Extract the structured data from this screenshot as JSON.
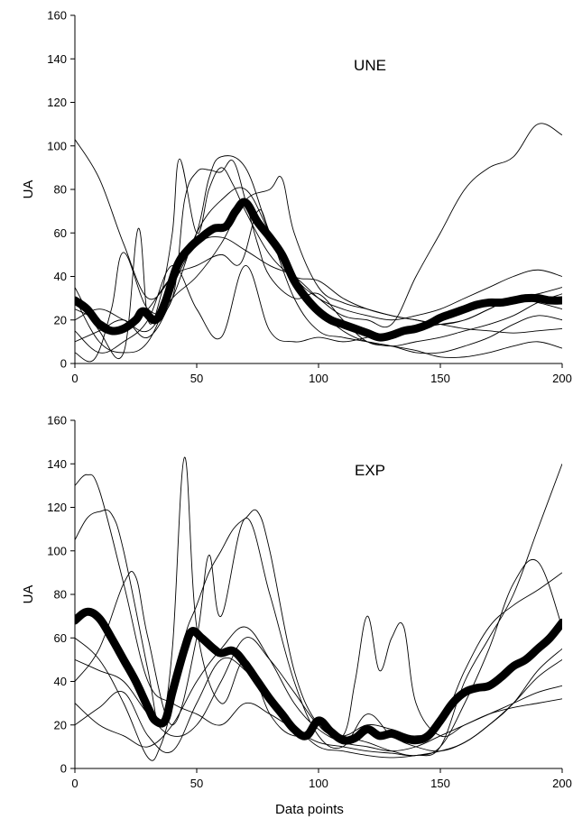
{
  "chart_data": [
    {
      "type": "line",
      "panel_label": "UNE",
      "xlabel": "",
      "ylabel": "UA",
      "xlim": [
        0,
        200
      ],
      "ylim": [
        0,
        160
      ],
      "xticks": [
        "0",
        "50",
        "100",
        "150",
        "200"
      ],
      "yticks": [
        "0",
        "20",
        "40",
        "60",
        "80",
        "100",
        "120",
        "140",
        "160"
      ],
      "grid": false,
      "series": [
        {
          "role": "individual",
          "x": [
            0,
            10,
            20,
            30,
            40,
            50,
            60,
            70,
            80,
            90,
            100,
            110,
            120,
            130,
            140,
            150,
            160,
            170,
            180,
            190,
            200
          ],
          "values": [
            103,
            85,
            55,
            30,
            40,
            55,
            58,
            52,
            45,
            40,
            30,
            22,
            20,
            18,
            40,
            60,
            80,
            90,
            95,
            110,
            105
          ]
        },
        {
          "role": "individual",
          "x": [
            0,
            8,
            15,
            20,
            30,
            40,
            45,
            50,
            55,
            60,
            65,
            70,
            75,
            80,
            90,
            100,
            110,
            120,
            130,
            140,
            150,
            160,
            170,
            180,
            190,
            200
          ],
          "values": [
            5,
            2,
            25,
            51,
            25,
            30,
            75,
            88,
            89,
            88,
            93,
            75,
            55,
            40,
            30,
            32,
            20,
            10,
            8,
            6,
            3,
            3,
            5,
            8,
            10,
            7
          ]
        },
        {
          "role": "individual",
          "x": [
            0,
            10,
            20,
            26,
            30,
            35,
            40,
            43,
            50,
            55,
            60,
            65,
            70,
            80,
            90,
            100,
            110,
            120,
            130,
            140,
            150,
            160,
            170,
            180,
            190,
            200
          ],
          "values": [
            35,
            15,
            5,
            62,
            20,
            30,
            60,
            94,
            60,
            80,
            90,
            82,
            70,
            50,
            40,
            38,
            30,
            25,
            22,
            20,
            18,
            16,
            15,
            14,
            15,
            16
          ]
        },
        {
          "role": "individual",
          "x": [
            0,
            10,
            20,
            30,
            40,
            50,
            55,
            60,
            70,
            80,
            90,
            100,
            110,
            120,
            130,
            140,
            150,
            160,
            170,
            180,
            190,
            200
          ],
          "values": [
            30,
            10,
            5,
            10,
            35,
            60,
            85,
            95,
            90,
            60,
            40,
            30,
            25,
            22,
            20,
            22,
            25,
            30,
            35,
            40,
            43,
            40
          ]
        },
        {
          "role": "individual",
          "x": [
            0,
            10,
            20,
            30,
            40,
            50,
            60,
            70,
            80,
            85,
            90,
            100,
            110,
            120,
            130,
            140,
            150,
            160,
            170,
            180,
            190,
            200
          ],
          "values": [
            20,
            25,
            20,
            15,
            30,
            40,
            55,
            75,
            80,
            85,
            60,
            35,
            28,
            25,
            22,
            20,
            18,
            20,
            25,
            30,
            32,
            35
          ]
        },
        {
          "role": "individual",
          "x": [
            0,
            10,
            20,
            30,
            40,
            50,
            60,
            70,
            80,
            90,
            100,
            110,
            120,
            130,
            140,
            150,
            160,
            170,
            180,
            190,
            200
          ],
          "values": [
            15,
            5,
            10,
            20,
            45,
            25,
            12,
            45,
            15,
            10,
            12,
            10,
            12,
            14,
            16,
            18,
            20,
            25,
            30,
            28,
            25
          ]
        },
        {
          "role": "individual",
          "x": [
            0,
            10,
            20,
            30,
            40,
            50,
            60,
            68,
            75,
            80,
            90,
            100,
            110,
            120,
            130,
            140,
            150,
            160,
            170,
            180,
            190,
            200
          ],
          "values": [
            25,
            20,
            15,
            25,
            40,
            45,
            50,
            46,
            70,
            60,
            30,
            15,
            12,
            10,
            8,
            5,
            5,
            8,
            12,
            18,
            22,
            20
          ]
        },
        {
          "role": "individual",
          "x": [
            0,
            10,
            20,
            30,
            40,
            50,
            60,
            70,
            80,
            90,
            100,
            110,
            120,
            130,
            140,
            150,
            160,
            170,
            180,
            190,
            200
          ],
          "values": [
            10,
            15,
            20,
            12,
            30,
            60,
            75,
            80,
            60,
            40,
            25,
            15,
            10,
            8,
            10,
            12,
            15,
            18,
            22,
            28,
            32
          ]
        },
        {
          "role": "mean",
          "x": [
            0,
            5,
            10,
            15,
            20,
            25,
            28,
            33,
            37,
            42,
            47,
            52,
            57,
            62,
            66,
            70,
            75,
            80,
            85,
            90,
            95,
            100,
            105,
            110,
            115,
            120,
            125,
            130,
            135,
            140,
            145,
            150,
            155,
            160,
            165,
            170,
            175,
            180,
            185,
            190,
            195,
            200
          ],
          "values": [
            29,
            25,
            18,
            15,
            16,
            20,
            24,
            20,
            28,
            45,
            53,
            58,
            62,
            63,
            70,
            74,
            65,
            58,
            50,
            38,
            30,
            24,
            20,
            18,
            16,
            14,
            12,
            13,
            15,
            16,
            18,
            21,
            23,
            25,
            27,
            28,
            28,
            29,
            30,
            30,
            29,
            29
          ]
        }
      ]
    },
    {
      "type": "line",
      "panel_label": "EXP",
      "xlabel": "Data points",
      "ylabel": "UA",
      "xlim": [
        0,
        200
      ],
      "ylim": [
        0,
        160
      ],
      "xticks": [
        "0",
        "50",
        "100",
        "150",
        "200"
      ],
      "yticks": [
        "0",
        "20",
        "40",
        "60",
        "80",
        "100",
        "120",
        "140",
        "160"
      ],
      "grid": false,
      "series": [
        {
          "role": "individual",
          "x": [
            0,
            5,
            10,
            20,
            30,
            40,
            50,
            60,
            70,
            80,
            90,
            100,
            110,
            120,
            130,
            140,
            150,
            160,
            170,
            180,
            190,
            200
          ],
          "values": [
            130,
            135,
            128,
            85,
            40,
            30,
            25,
            20,
            30,
            25,
            18,
            12,
            10,
            8,
            7,
            6,
            10,
            40,
            60,
            80,
            110,
            140
          ]
        },
        {
          "role": "individual",
          "x": [
            0,
            5,
            10,
            15,
            20,
            30,
            35,
            40,
            45,
            50,
            60,
            70,
            80,
            90,
            100,
            110,
            120,
            130,
            140,
            150,
            160,
            170,
            180,
            190,
            200
          ],
          "values": [
            105,
            115,
            118,
            117,
            100,
            45,
            20,
            55,
            143,
            65,
            30,
            50,
            25,
            15,
            20,
            15,
            12,
            8,
            6,
            10,
            30,
            55,
            85,
            95,
            65
          ]
        },
        {
          "role": "individual",
          "x": [
            0,
            10,
            20,
            30,
            35,
            40,
            45,
            50,
            55,
            60,
            65,
            70,
            75,
            80,
            90,
            100,
            110,
            120,
            130,
            140,
            150,
            160,
            170,
            180,
            190,
            200
          ],
          "values": [
            60,
            50,
            30,
            5,
            10,
            30,
            60,
            75,
            90,
            100,
            110,
            115,
            118,
            100,
            45,
            20,
            15,
            20,
            18,
            15,
            20,
            45,
            65,
            75,
            82,
            90
          ]
        },
        {
          "role": "individual",
          "x": [
            0,
            10,
            20,
            25,
            30,
            40,
            50,
            55,
            60,
            70,
            80,
            90,
            100,
            110,
            120,
            130,
            140,
            150,
            160,
            170,
            180,
            190,
            200
          ],
          "values": [
            40,
            55,
            85,
            88,
            60,
            20,
            60,
            98,
            70,
            115,
            80,
            40,
            15,
            10,
            25,
            15,
            10,
            8,
            12,
            20,
            30,
            45,
            55
          ]
        },
        {
          "role": "individual",
          "x": [
            0,
            10,
            20,
            30,
            40,
            50,
            60,
            70,
            80,
            90,
            100,
            110,
            115,
            120,
            125,
            130,
            135,
            140,
            150,
            160,
            170,
            180,
            190,
            200
          ],
          "values": [
            50,
            45,
            40,
            25,
            15,
            20,
            40,
            60,
            50,
            35,
            20,
            15,
            40,
            70,
            45,
            60,
            65,
            30,
            15,
            20,
            25,
            30,
            35,
            38
          ]
        },
        {
          "role": "individual",
          "x": [
            0,
            10,
            20,
            30,
            40,
            50,
            60,
            70,
            80,
            90,
            100,
            110,
            120,
            130,
            140,
            150,
            160,
            170,
            180,
            190,
            200
          ],
          "values": [
            30,
            20,
            15,
            10,
            20,
            40,
            55,
            65,
            50,
            30,
            18,
            12,
            10,
            8,
            10,
            15,
            20,
            25,
            28,
            30,
            32
          ]
        },
        {
          "role": "individual",
          "x": [
            0,
            10,
            20,
            30,
            40,
            50,
            60,
            70,
            80,
            90,
            100,
            110,
            120,
            130,
            140,
            150,
            160,
            170,
            180,
            190,
            200
          ],
          "values": [
            20,
            28,
            35,
            15,
            8,
            30,
            50,
            45,
            30,
            20,
            10,
            8,
            6,
            5,
            6,
            8,
            12,
            20,
            30,
            42,
            50
          ]
        },
        {
          "role": "mean",
          "x": [
            0,
            5,
            10,
            15,
            20,
            25,
            30,
            33,
            37,
            40,
            45,
            48,
            52,
            57,
            60,
            65,
            70,
            75,
            80,
            85,
            90,
            95,
            100,
            105,
            110,
            115,
            120,
            125,
            130,
            135,
            140,
            145,
            150,
            155,
            160,
            165,
            170,
            175,
            180,
            185,
            190,
            195,
            200
          ],
          "values": [
            68,
            72,
            69,
            60,
            50,
            40,
            28,
            22,
            22,
            35,
            55,
            63,
            60,
            55,
            53,
            54,
            48,
            40,
            32,
            25,
            18,
            15,
            22,
            17,
            13,
            14,
            18,
            15,
            16,
            14,
            13,
            15,
            22,
            30,
            35,
            37,
            38,
            42,
            47,
            50,
            55,
            60,
            67
          ]
        }
      ]
    }
  ]
}
